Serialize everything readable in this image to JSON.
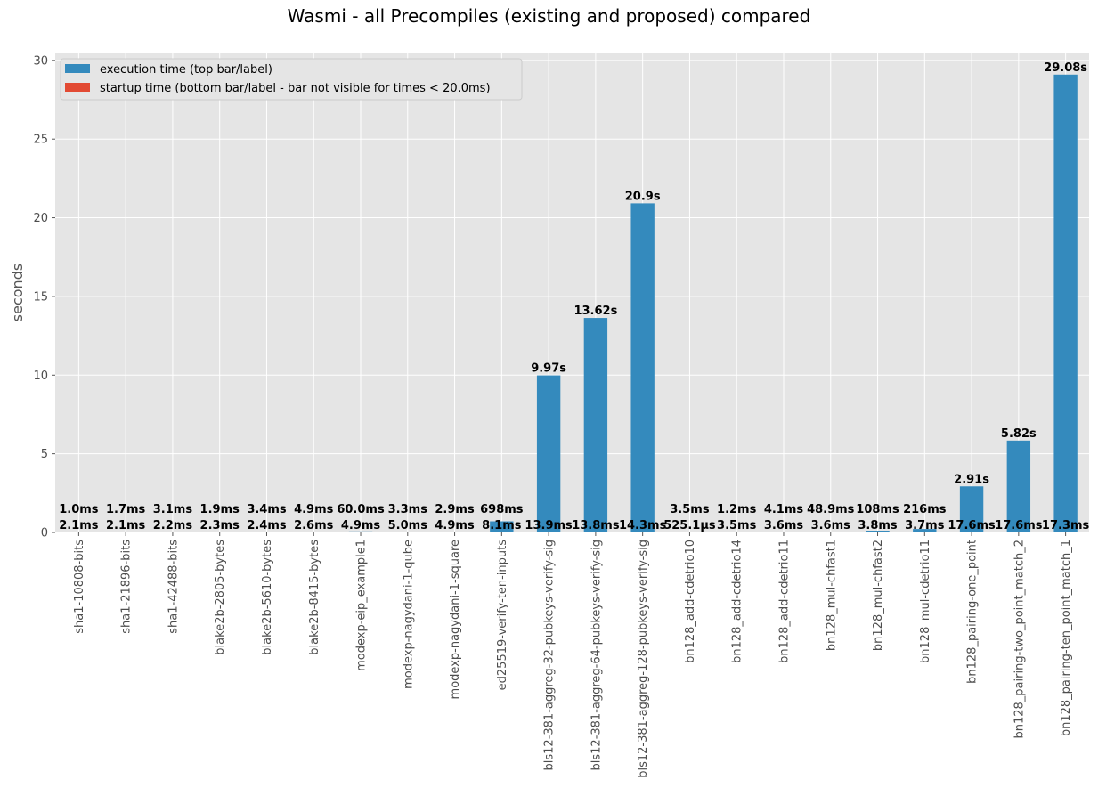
{
  "chart_data": {
    "type": "bar",
    "title": "Wasmi - all Precompiles (existing and proposed) compared",
    "ylabel": "seconds",
    "xlabel": "",
    "ylim": [
      0,
      30.5
    ],
    "yticks": [
      0,
      5,
      10,
      15,
      20,
      25,
      30
    ],
    "grid": true,
    "stacked": true,
    "legend_position": "top-left",
    "colors": {
      "execution": "#348ABD",
      "startup": "#E24A33",
      "background": "#E5E5E5",
      "grid": "#FFFFFF"
    },
    "categories": [
      "sha1-10808-bits",
      "sha1-21896-bits",
      "sha1-42488-bits",
      "blake2b-2805-bytes",
      "blake2b-5610-bytes",
      "blake2b-8415-bytes",
      "modexp-eip_example1",
      "modexp-nagydani-1-qube",
      "modexp-nagydani-1-square",
      "ed25519-verify-ten-inputs",
      "bls12-381-aggreg-32-pubkeys-verify-sig",
      "bls12-381-aggreg-64-pubkeys-verify-sig",
      "bls12-381-aggreg-128-pubkeys-verify-sig",
      "bn128_add-cdetrio10",
      "bn128_add-cdetrio14",
      "bn128_add-cdetrio11",
      "bn128_mul-chfast1",
      "bn128_mul-chfast2",
      "bn128_mul-cdetrio11",
      "bn128_pairing-one_point",
      "bn128_pairing-two_point_match_2",
      "bn128_pairing-ten_point_match_1"
    ],
    "series": [
      {
        "name": "execution time (top bar/label)",
        "values": [
          0.001,
          0.0017,
          0.0031,
          0.0019,
          0.0034,
          0.0049,
          0.06,
          0.0033,
          0.0029,
          0.698,
          9.97,
          13.62,
          20.9,
          0.0035,
          0.0012,
          0.0041,
          0.0489,
          0.108,
          0.216,
          2.91,
          5.82,
          29.08
        ],
        "labels": [
          "1.0ms",
          "1.7ms",
          "3.1ms",
          "1.9ms",
          "3.4ms",
          "4.9ms",
          "60.0ms",
          "3.3ms",
          "2.9ms",
          "698ms",
          "9.97s",
          "13.62s",
          "20.9s",
          "3.5ms",
          "1.2ms",
          "4.1ms",
          "48.9ms",
          "108ms",
          "216ms",
          "2.91s",
          "5.82s",
          "29.08s"
        ]
      },
      {
        "name": "startup time (bottom bar/label - bar not visible for times < 20.0ms)",
        "values": [
          0.0021,
          0.0021,
          0.0022,
          0.0023,
          0.0024,
          0.0026,
          0.0049,
          0.005,
          0.0049,
          0.0081,
          0.0139,
          0.0138,
          0.0143,
          0.0005251,
          0.0035,
          0.0036,
          0.0036,
          0.0038,
          0.0037,
          0.0176,
          0.0176,
          0.0173
        ],
        "labels": [
          "2.1ms",
          "2.1ms",
          "2.2ms",
          "2.3ms",
          "2.4ms",
          "2.6ms",
          "4.9ms",
          "5.0ms",
          "4.9ms",
          "8.1ms",
          "13.9ms",
          "13.8ms",
          "14.3ms",
          "525.1µs",
          "3.5ms",
          "3.6ms",
          "3.6ms",
          "3.8ms",
          "3.7ms",
          "17.6ms",
          "17.6ms",
          "17.3ms"
        ]
      }
    ]
  }
}
